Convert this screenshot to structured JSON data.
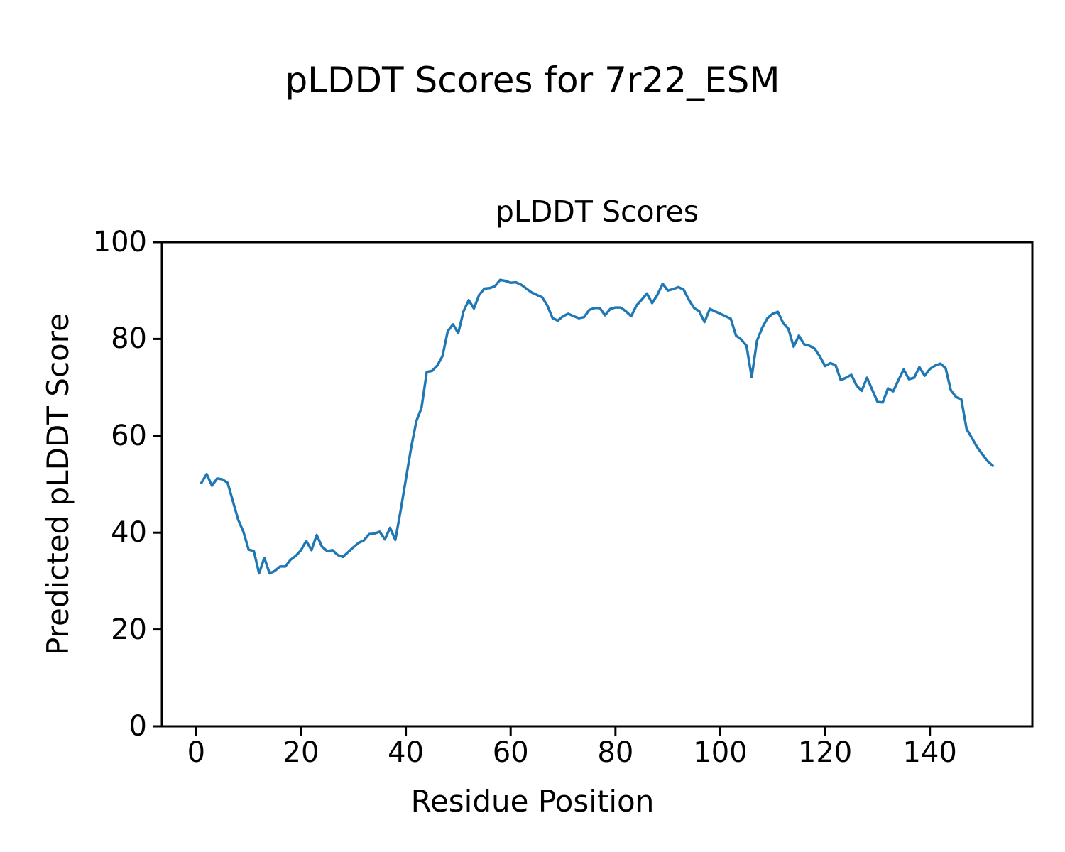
{
  "figure": {
    "suptitle": "pLDDT Scores for 7r22_ESM",
    "background": "#ffffff"
  },
  "chart_data": {
    "type": "line",
    "title": "pLDDT Scores",
    "xlabel": "Residue Position",
    "ylabel": "Predicted pLDDT Score",
    "x_ticks": [
      0,
      20,
      40,
      60,
      80,
      100,
      120,
      140
    ],
    "y_ticks": [
      0,
      20,
      40,
      60,
      80,
      100
    ],
    "xlim": [
      -6.55,
      159.55
    ],
    "ylim": [
      0,
      100
    ],
    "grid": false,
    "legend": null,
    "line_color": "#1f77b4",
    "line_width": 3.5,
    "axis_color": "#000000",
    "series": [
      {
        "name": "pLDDT",
        "x_start": 1,
        "x_step": 1,
        "values": [
          50.3,
          52.1,
          49.7,
          51.2,
          51.0,
          50.3,
          46.5,
          42.7,
          40.2,
          36.5,
          36.2,
          31.6,
          34.8,
          31.6,
          32.1,
          33.0,
          33.0,
          34.4,
          35.2,
          36.4,
          38.3,
          36.4,
          39.5,
          37.1,
          36.2,
          36.4,
          35.4,
          35.0,
          36.0,
          37.0,
          37.9,
          38.4,
          39.7,
          39.8,
          40.2,
          38.6,
          41.0,
          38.5,
          44.5,
          51.0,
          57.5,
          63.0,
          65.8,
          73.2,
          73.4,
          74.5,
          76.5,
          81.6,
          83.0,
          81.2,
          85.7,
          88.0,
          86.3,
          89.1,
          90.4,
          90.5,
          90.9,
          92.2,
          92.0,
          91.6,
          91.7,
          91.2,
          90.4,
          89.6,
          89.1,
          88.6,
          86.9,
          84.3,
          83.8,
          84.7,
          85.2,
          84.7,
          84.3,
          84.5,
          86.0,
          86.4,
          86.4,
          84.9,
          86.2,
          86.5,
          86.5,
          85.7,
          84.7,
          86.9,
          88.1,
          89.4,
          87.4,
          89.1,
          91.4,
          90.0,
          90.3,
          90.7,
          90.2,
          88.1,
          86.4,
          85.7,
          83.5,
          86.2,
          85.7,
          85.2,
          84.7,
          84.2,
          80.7,
          79.9,
          78.6,
          72.1,
          79.6,
          82.3,
          84.3,
          85.2,
          85.6,
          83.3,
          82.1,
          78.4,
          80.7,
          78.9,
          78.6,
          78.0,
          76.4,
          74.4,
          75.0,
          74.6,
          71.5,
          72.0,
          72.6,
          70.4,
          69.3,
          72.0,
          69.5,
          67.0,
          66.9,
          69.8,
          69.2,
          71.5,
          73.7,
          71.7,
          72.0,
          74.2,
          72.4,
          73.8,
          74.5,
          74.9,
          74.0,
          69.4,
          68.0,
          67.5,
          61.4,
          59.6,
          57.7,
          56.2,
          54.8,
          53.8
        ]
      }
    ]
  }
}
